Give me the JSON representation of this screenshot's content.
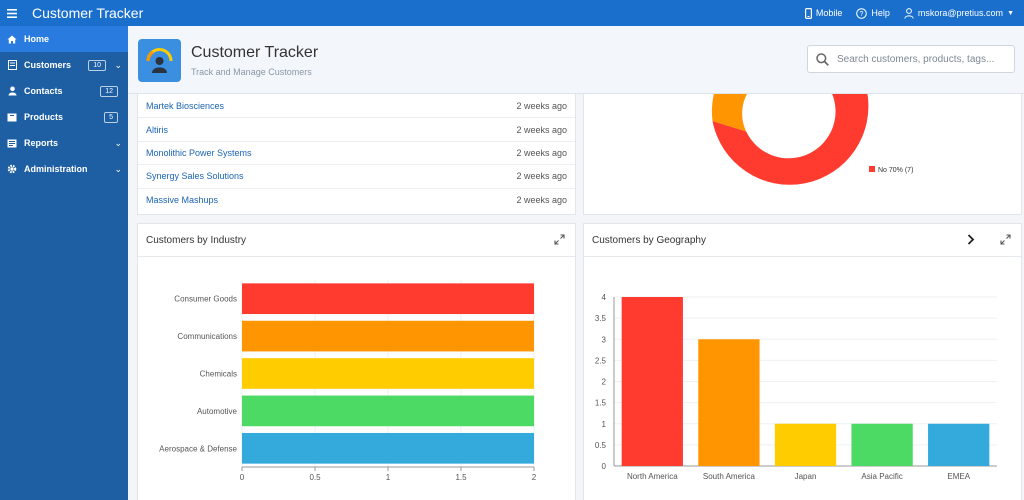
{
  "app": {
    "title": "Customer Tracker",
    "mobile_label": "Mobile",
    "help_label": "Help",
    "user_label": "mskora@pretius.com"
  },
  "sidebar": {
    "items": [
      {
        "label": "Home",
        "icon": "home-icon",
        "active": true
      },
      {
        "label": "Customers",
        "icon": "customers-icon",
        "badge": "10",
        "chevron": true
      },
      {
        "label": "Contacts",
        "icon": "contacts-icon",
        "badge": "12"
      },
      {
        "label": "Products",
        "icon": "products-icon",
        "badge": "5"
      },
      {
        "label": "Reports",
        "icon": "reports-icon",
        "chevron": true
      },
      {
        "label": "Administration",
        "icon": "gear-icon",
        "chevron": true
      }
    ]
  },
  "hero": {
    "title": "Customer Tracker",
    "subtitle": "Track and Manage Customers"
  },
  "search": {
    "placeholder": "Search customers, products, tags..."
  },
  "recent": [
    {
      "name": "Martek Biosciences",
      "time": "2 weeks ago"
    },
    {
      "name": "Altiris",
      "time": "2 weeks ago"
    },
    {
      "name": "Monolithic Power Systems",
      "time": "2 weeks ago"
    },
    {
      "name": "Synergy Sales Solutions",
      "time": "2 weeks ago"
    },
    {
      "name": "Massive Mashups",
      "time": "2 weeks ago"
    }
  ],
  "donut": {
    "legend_label": "No 70% (7)",
    "colors": {
      "no": "#ff3b30",
      "other": "#ff9500"
    }
  },
  "industry_panel": {
    "title": "Customers by Industry"
  },
  "geo_panel": {
    "title": "Customers by Geography"
  },
  "chart_data": [
    {
      "type": "bar",
      "orientation": "horizontal",
      "categories": [
        "Consumer Goods",
        "Communications",
        "Chemicals",
        "Automotive",
        "Aerospace & Defense"
      ],
      "values": [
        2,
        2,
        2,
        2,
        2
      ],
      "colors": [
        "#ff3b30",
        "#ff9500",
        "#ffcc00",
        "#4cd964",
        "#34aadc"
      ],
      "xlim": [
        0,
        2
      ],
      "xticks": [
        "0",
        "0.5",
        "1",
        "1.5",
        "2"
      ]
    },
    {
      "type": "bar",
      "categories": [
        "North America",
        "South America",
        "Japan",
        "Asia Pacific",
        "EMEA"
      ],
      "values": [
        4,
        3,
        1,
        1,
        1
      ],
      "colors": [
        "#ff3b30",
        "#ff9500",
        "#ffcc00",
        "#4cd964",
        "#34aadc"
      ],
      "ylim": [
        0,
        4
      ],
      "yticks": [
        "0",
        "0.5",
        "1",
        "1.5",
        "2",
        "2.5",
        "3",
        "3.5",
        "4"
      ]
    }
  ]
}
